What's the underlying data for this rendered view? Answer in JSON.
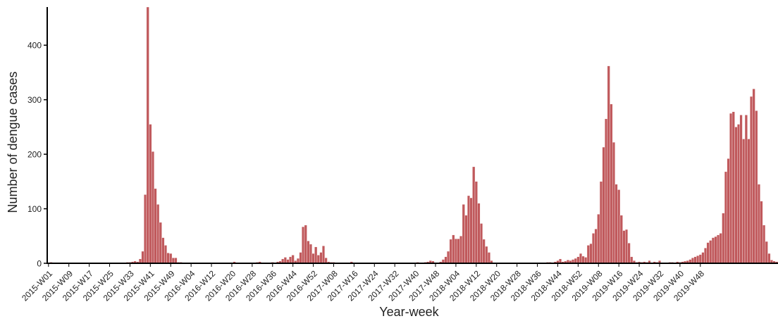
{
  "chart_data": {
    "type": "bar",
    "xlabel": "Year-week",
    "ylabel": "Number of dengue cases",
    "ylim": [
      0,
      470
    ],
    "yticks": [
      0,
      100,
      200,
      300,
      400
    ],
    "grid": false,
    "bar_color": "#c0595c",
    "bar_edge_color": "#ffffff",
    "xtick_labels": [
      "2015-W01",
      "2015-W09",
      "2015-W17",
      "2015-W25",
      "2015-W33",
      "2015-W41",
      "2015-W49",
      "2016-W04",
      "2016-W12",
      "2016-W20",
      "2016-W28",
      "2016-W36",
      "2016-W44",
      "2016-W52",
      "2017-W08",
      "2017-W16",
      "2017-W24",
      "2017-W32",
      "2017-W40",
      "2017-W48",
      "2018-W04",
      "2018-W12",
      "2018-W20",
      "2018-W28",
      "2018-W36",
      "2018-W44",
      "2018-W52",
      "2019-W08",
      "2019-W16",
      "2019-W24",
      "2019-W32",
      "2019-W40",
      "2019-W48"
    ],
    "xtick_index_step": 8,
    "values": [
      1,
      2,
      1,
      1,
      0,
      1,
      0,
      0,
      0,
      1,
      1,
      0,
      0,
      1,
      0,
      0,
      1,
      0,
      0,
      1,
      1,
      0,
      1,
      1,
      0,
      1,
      1,
      1,
      0,
      0,
      1,
      2,
      2,
      3,
      4,
      3,
      8,
      22,
      126,
      470,
      255,
      205,
      137,
      108,
      75,
      47,
      33,
      19,
      18,
      10,
      10,
      2,
      2,
      1,
      1,
      1,
      0,
      1,
      0,
      0,
      0,
      0,
      1,
      1,
      0,
      0,
      0,
      0,
      0,
      1,
      0,
      1,
      1,
      3,
      1,
      0,
      0,
      1,
      1,
      0,
      0,
      1,
      2,
      3,
      1,
      1,
      0,
      0,
      2,
      1,
      3,
      4,
      8,
      11,
      7,
      12,
      15,
      5,
      9,
      20,
      67,
      70,
      41,
      35,
      18,
      30,
      15,
      20,
      32,
      10,
      3,
      2,
      2,
      1,
      1,
      1,
      0,
      0,
      0,
      3,
      1,
      1,
      1,
      0,
      0,
      0,
      0,
      1,
      0,
      0,
      1,
      1,
      1,
      0,
      0,
      1,
      0,
      0,
      1,
      0,
      0,
      1,
      0,
      1,
      1,
      2,
      1,
      1,
      2,
      3,
      5,
      4,
      1,
      1,
      3,
      7,
      12,
      22,
      44,
      52,
      45,
      45,
      50,
      108,
      88,
      124,
      120,
      177,
      150,
      110,
      73,
      44,
      31,
      20,
      5,
      1,
      0,
      0,
      1,
      0,
      0,
      1,
      0,
      0,
      0,
      0,
      1,
      0,
      0,
      1,
      0,
      0,
      1,
      0,
      0,
      1,
      2,
      2,
      1,
      3,
      5,
      8,
      3,
      4,
      6,
      5,
      7,
      9,
      12,
      18,
      13,
      11,
      33,
      36,
      55,
      63,
      90,
      150,
      213,
      265,
      362,
      292,
      222,
      145,
      135,
      88,
      60,
      62,
      37,
      12,
      5,
      2,
      3,
      2,
      3,
      2,
      5,
      1,
      3,
      2,
      5,
      1,
      0,
      1,
      2,
      2,
      1,
      3,
      2,
      3,
      4,
      5,
      7,
      10,
      12,
      14,
      16,
      20,
      28,
      38,
      42,
      47,
      49,
      52,
      55,
      92,
      168,
      192,
      275,
      278,
      250,
      255,
      272,
      228,
      272,
      228,
      306,
      320,
      280,
      145,
      114,
      70,
      40,
      18,
      6,
      4,
      3
    ]
  }
}
